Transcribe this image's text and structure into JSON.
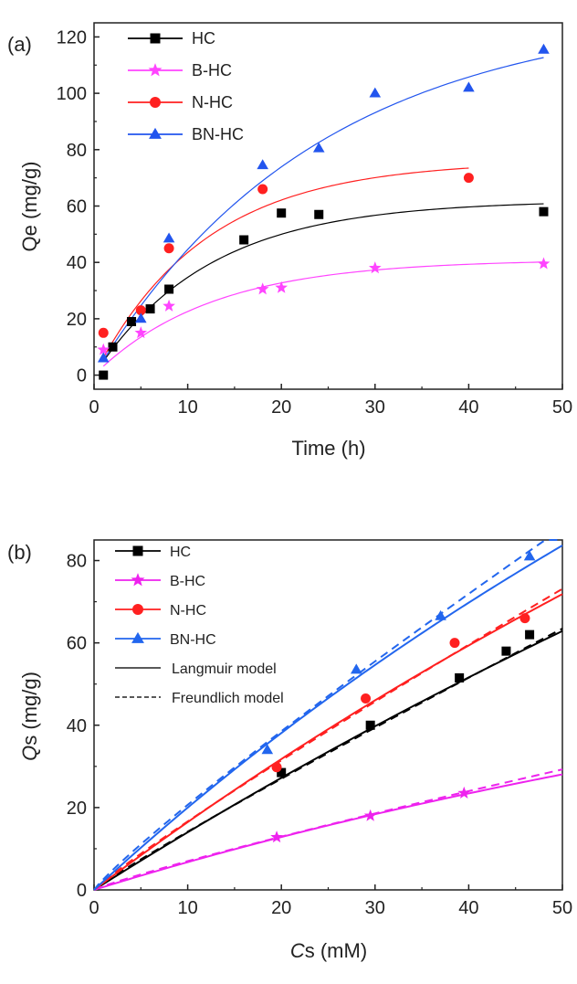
{
  "chart_data": [
    {
      "type": "scatter",
      "panel_label": "(a)",
      "xlabel": "Time (h)",
      "ylabel": "Qe (mg/g)",
      "xlim": [
        0,
        50
      ],
      "ylim": [
        -5,
        125
      ],
      "xticks": [
        "0",
        "10",
        "20",
        "30",
        "40",
        "50"
      ],
      "yticks": [
        "0",
        "20",
        "40",
        "60",
        "80",
        "100",
        "120"
      ],
      "legend_position": "top-left",
      "series": [
        {
          "name": "HC",
          "color": "#000000",
          "marker": "square",
          "x": [
            1,
            2,
            4,
            6,
            8,
            16,
            20,
            24,
            48
          ],
          "y": [
            0,
            10,
            19,
            23.5,
            30.5,
            48,
            57.5,
            57,
            58
          ],
          "fit": {
            "qe": 62,
            "k": 0.082,
            "x_end": 48
          }
        },
        {
          "name": "B-HC",
          "color": "#ff44ff",
          "marker": "star",
          "x": [
            1,
            5,
            8,
            18,
            20,
            30,
            48
          ],
          "y": [
            9,
            15,
            24.5,
            30.5,
            31,
            38,
            39.5
          ],
          "fit": {
            "qe": 41,
            "k": 0.08,
            "x_end": 48
          }
        },
        {
          "name": "N-HC",
          "color": "#ff2020",
          "marker": "circle",
          "x": [
            1,
            5,
            8,
            18,
            40
          ],
          "y": [
            15,
            23,
            45,
            66,
            70
          ],
          "fit": {
            "qe": 76,
            "k": 0.085,
            "x_end": 40
          }
        },
        {
          "name": "BN-HC",
          "color": "#2255ee",
          "marker": "triangle",
          "x": [
            1,
            5,
            8,
            18,
            24,
            30,
            40,
            48
          ],
          "y": [
            6,
            20,
            48.5,
            74.5,
            80.5,
            100,
            102,
            115.5
          ],
          "fit": {
            "qe": 130,
            "k": 0.042,
            "x_end": 48
          }
        }
      ]
    },
    {
      "type": "scatter",
      "panel_label": "(b)",
      "xlabel_italic": "C",
      "xlabel_rest": "s (mM)",
      "ylabel_italic": "Q",
      "ylabel_rest": "s (mg/g)",
      "xlim": [
        0,
        50
      ],
      "ylim": [
        0,
        85
      ],
      "xticks": [
        "0",
        "10",
        "20",
        "30",
        "40",
        "50"
      ],
      "yticks": [
        "0",
        "20",
        "40",
        "60",
        "80"
      ],
      "legend_position": "top-left",
      "model_legend": [
        {
          "name": "Langmuir model",
          "style": "solid"
        },
        {
          "name": "Freundlich model",
          "style": "dashed"
        }
      ],
      "series": [
        {
          "name": "HC",
          "color": "#000000",
          "marker": "square",
          "x": [
            20,
            29.5,
            39,
            44,
            46.5
          ],
          "y": [
            28.5,
            40,
            51.5,
            58,
            62
          ],
          "langmuir": {
            "a": 1.44,
            "b": 0.0029
          },
          "freundlich": {
            "K": 1.65,
            "n": 0.933
          }
        },
        {
          "name": "B-HC",
          "color": "#ee22ee",
          "marker": "star",
          "x": [
            19.5,
            29.5,
            39.5
          ],
          "y": [
            12.8,
            18,
            23.5
          ],
          "langmuir": {
            "a": 0.71,
            "b": 0.0053
          },
          "freundlich": {
            "K": 0.9,
            "n": 0.89
          }
        },
        {
          "name": "N-HC",
          "color": "#ff2020",
          "marker": "circle",
          "x": [
            19.5,
            29,
            38.5,
            46
          ],
          "y": [
            29.8,
            46.5,
            60,
            66
          ],
          "langmuir": {
            "a": 1.71,
            "b": 0.0038
          },
          "freundlich": {
            "K": 2.0,
            "n": 0.92
          }
        },
        {
          "name": "BN-HC",
          "color": "#2266ee",
          "marker": "triangle",
          "x": [
            18.5,
            28,
            37,
            46.5
          ],
          "y": [
            34,
            53.5,
            66.5,
            81
          ],
          "langmuir": {
            "a": 2.1,
            "b": 0.0051
          },
          "freundlich": {
            "K": 2.6,
            "n": 0.9
          }
        }
      ]
    }
  ]
}
